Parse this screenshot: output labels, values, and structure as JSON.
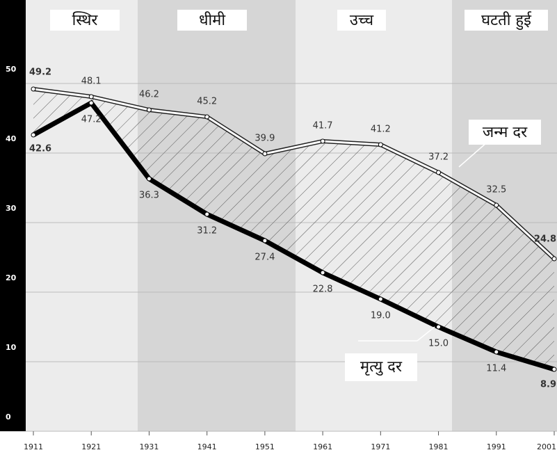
{
  "chart_data": {
    "type": "line",
    "phases": [
      "स्थिर",
      "धीमी",
      "उच्च",
      "घटती हुई"
    ],
    "x": [
      1911,
      1921,
      1931,
      1941,
      1951,
      1961,
      1971,
      1981,
      1991,
      2001
    ],
    "xlim": [
      1911,
      2001
    ],
    "xticks": [
      1911,
      1921,
      1931,
      1941,
      1951,
      1961,
      1971,
      1981,
      1991,
      2001
    ],
    "ylim": [
      0,
      62
    ],
    "yticks": [
      0,
      10,
      20,
      30,
      40,
      50
    ],
    "grid": true,
    "series": [
      {
        "name": "जन्म दर",
        "color": "#ffffff",
        "values": [
          49.2,
          48.1,
          46.2,
          45.2,
          39.9,
          41.7,
          41.2,
          37.2,
          32.5,
          24.8
        ]
      },
      {
        "name": "मृत्यु दर",
        "color": "#000000",
        "values": [
          42.6,
          47.2,
          36.3,
          31.2,
          27.4,
          22.8,
          19.0,
          15.0,
          11.4,
          8.9
        ],
        "value_labels": [
          "42.6",
          "47.2",
          "36.3",
          "31.2",
          "27.4",
          "22.8",
          "19.0",
          "15.0",
          "11.4",
          "8.9"
        ]
      }
    ]
  }
}
